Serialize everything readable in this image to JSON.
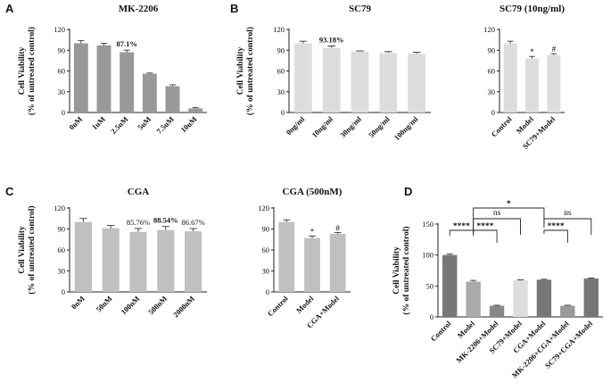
{
  "panels": {
    "A": "A",
    "B": "B",
    "C": "C",
    "D": "D"
  },
  "chart_data": [
    {
      "id": "A",
      "type": "bar",
      "title": "MK-2206",
      "ylabel": [
        "Cell Viability",
        "(% of untreated control)"
      ],
      "ylim": [
        0,
        120
      ],
      "yticks": [
        0,
        30,
        60,
        90,
        120
      ],
      "categories": [
        "0uM",
        "1uM",
        "2.5uM",
        "5uM",
        "7.5uM",
        "10uM"
      ],
      "values": [
        100,
        97,
        87.1,
        56,
        38,
        6
      ],
      "errors": [
        4,
        3,
        3,
        1,
        2,
        1
      ],
      "bar_color": "#999999",
      "annotations": [
        {
          "bar": 2,
          "text": "87.1%",
          "bold": true
        }
      ]
    },
    {
      "id": "B1",
      "type": "bar",
      "title": "SC79",
      "ylabel": [
        "Cell Viability",
        "(% of untreated control)"
      ],
      "ylim": [
        0,
        120
      ],
      "yticks": [
        0,
        30,
        60,
        90,
        120
      ],
      "categories": [
        "0ng/ml",
        "10ng/ml",
        "30ng/ml",
        "50ng/ml",
        "100ng/ml"
      ],
      "values": [
        100,
        93.18,
        88,
        86,
        85
      ],
      "errors": [
        3,
        3,
        1,
        2,
        2
      ],
      "bar_color": "#dddddd",
      "annotations": [
        {
          "bar": 1,
          "text": "93.18%",
          "bold": true
        }
      ]
    },
    {
      "id": "B2",
      "type": "bar",
      "title": "SC79 (10ng/ml)",
      "ylabel": [],
      "ylim": [
        0,
        120
      ],
      "yticks": [
        0,
        30,
        60,
        90,
        120
      ],
      "categories": [
        "Control",
        "Model",
        "SC79+Model"
      ],
      "values": [
        100,
        78,
        83
      ],
      "errors": [
        3,
        3,
        2
      ],
      "bar_color": "#dddddd",
      "annotations": [
        {
          "bar": 1,
          "text": "*",
          "bold": false
        },
        {
          "bar": 2,
          "text": "#",
          "bold": false
        }
      ]
    },
    {
      "id": "C1",
      "type": "bar",
      "title": "CGA",
      "ylabel": [
        "Cell Viability",
        "(% of untreated control)"
      ],
      "ylim": [
        0,
        120
      ],
      "yticks": [
        0,
        30,
        60,
        90,
        120
      ],
      "categories": [
        "0nM",
        "50nM",
        "100nM",
        "500nM",
        "2000nM"
      ],
      "values": [
        100,
        91,
        85.76,
        88.54,
        86.67
      ],
      "errors": [
        5,
        4,
        5,
        5,
        4
      ],
      "bar_color": "#c0c0c0",
      "annotations": [
        {
          "bar": 2,
          "text": "85.76%",
          "bold": false
        },
        {
          "bar": 3,
          "text": "88.54%",
          "bold": true
        },
        {
          "bar": 4,
          "text": "86.67%",
          "bold": false
        }
      ]
    },
    {
      "id": "C2",
      "type": "bar",
      "title": "CGA (500nM)",
      "ylabel": [],
      "ylim": [
        0,
        120
      ],
      "yticks": [
        0,
        30,
        60,
        90,
        120
      ],
      "categories": [
        "Control",
        "Model",
        "CGA+Model"
      ],
      "values": [
        100,
        77,
        83
      ],
      "errors": [
        3,
        3,
        2
      ],
      "bar_color": "#c0c0c0",
      "annotations": [
        {
          "bar": 1,
          "text": "*",
          "bold": false
        },
        {
          "bar": 2,
          "text": "#",
          "bold": false
        }
      ]
    },
    {
      "id": "D",
      "type": "bar",
      "title": "",
      "ylabel": [
        "Cell Viability",
        "(% of untreated control)"
      ],
      "ylim": [
        0,
        150
      ],
      "yticks": [
        0,
        50,
        100,
        150
      ],
      "categories": [
        "Control",
        "Model",
        "MK-2206+Model",
        "SC79+Model",
        "CGA+Model",
        "MK-2206+CGA+Model",
        "SC79+CGA+Model"
      ],
      "values": [
        100,
        57,
        18,
        59,
        60,
        18,
        62
      ],
      "errors": [
        1.5,
        2,
        0.8,
        0.8,
        0.8,
        0.8,
        0.8
      ],
      "bar_colors": [
        "#777777",
        "#aaaaaa",
        "#888888",
        "#dddddd",
        "#777777",
        "#999999",
        "#777777"
      ],
      "annotations": [],
      "comparisons": [
        {
          "from": 0,
          "to": 1,
          "text": "****"
        },
        {
          "from": 1,
          "to": 2,
          "text": "****"
        },
        {
          "from": 1,
          "to": 3,
          "text": "ns"
        },
        {
          "from": 1,
          "to": 4,
          "text": "*"
        },
        {
          "from": 4,
          "to": 5,
          "text": "****"
        },
        {
          "from": 4,
          "to": 6,
          "text": "ns"
        }
      ]
    }
  ]
}
